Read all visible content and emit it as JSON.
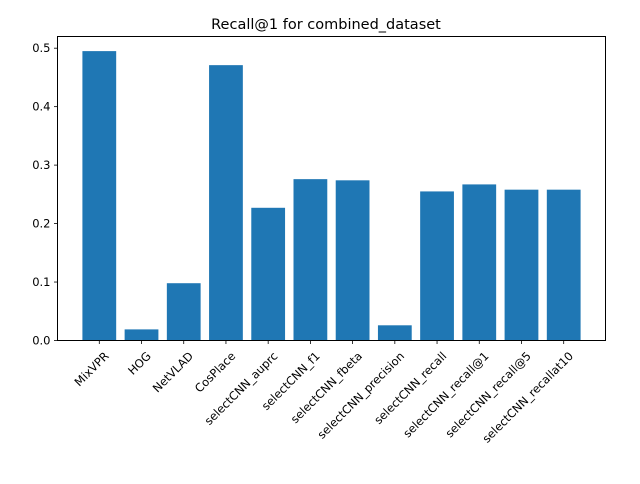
{
  "chart_data": {
    "type": "bar",
    "title": "Recall@1 for combined_dataset",
    "xlabel": "",
    "ylabel": "",
    "categories": [
      "MixVPR",
      "HOG",
      "NetVLAD",
      "CosPlace",
      "selectCNN_auprc",
      "selectCNN_f1",
      "selectCNN_fbeta",
      "selectCNN_precision",
      "selectCNN_recall",
      "selectCNN_recall@1",
      "selectCNN_recall@5",
      "selectCNN_recallat10"
    ],
    "values": [
      0.495,
      0.019,
      0.098,
      0.471,
      0.227,
      0.276,
      0.274,
      0.026,
      0.255,
      0.267,
      0.258,
      0.258
    ],
    "ylim": [
      0,
      0.52
    ],
    "yticks": [
      0.0,
      0.1,
      0.2,
      0.3,
      0.4,
      0.5
    ],
    "ytick_labels": [
      "0.0",
      "0.1",
      "0.2",
      "0.3",
      "0.4",
      "0.5"
    ],
    "bar_color": "#1f77b4",
    "grid": false,
    "xtick_rotation": 45
  }
}
